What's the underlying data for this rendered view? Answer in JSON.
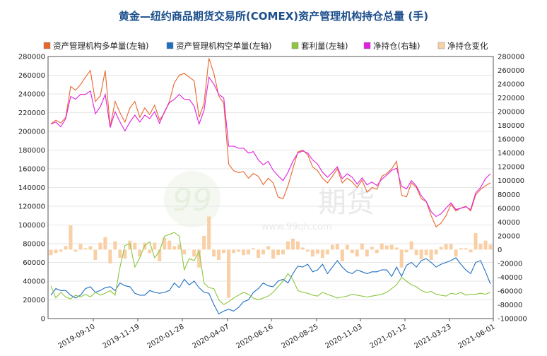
{
  "chart_data": {
    "type": "line",
    "title": "黄金—纽约商品期货交易所(COMEX)资产管理机构持仓总量  (手)",
    "watermark": {
      "brand": "期货",
      "url": "www.99qh.com",
      "logo": "99"
    },
    "legend": [
      {
        "name": "资产管理机构多单量(左轴)",
        "color": "#e8662c",
        "kind": "line"
      },
      {
        "name": "资产管理机构空单量(左轴)",
        "color": "#1f6fc0",
        "kind": "line"
      },
      {
        "name": "套利量(左轴)",
        "color": "#8cc63f",
        "kind": "line"
      },
      {
        "name": "净持仓(右轴)",
        "color": "#e020e0",
        "kind": "line"
      },
      {
        "name": "净持仓变化",
        "color": "#f9cfa6",
        "kind": "bar"
      }
    ],
    "left_axis": {
      "min": 0,
      "max": 280000,
      "step": 20000
    },
    "right_axis": {
      "min": -100000,
      "max": 280000,
      "step": 20000
    },
    "x_tick_labels": [
      "2019-09-10",
      "2019-11-19",
      "2020-01-28",
      "2020-04-07",
      "2020-06-16",
      "2020-08-25",
      "2020-11-03",
      "2021-01-12",
      "2021-03-23",
      "2021-06-01"
    ],
    "grid": "horizontal",
    "x_start": "2019-07-09",
    "series": [
      {
        "name": "资产管理机构多单量(左轴)",
        "axis": "left",
        "color": "#e8662c",
        "values": [
          208000,
          212000,
          209000,
          215000,
          248000,
          244000,
          250000,
          258000,
          265000,
          232000,
          238000,
          265000,
          205000,
          232000,
          220000,
          210000,
          225000,
          232000,
          215000,
          225000,
          218000,
          228000,
          212000,
          220000,
          232000,
          252000,
          260000,
          262000,
          258000,
          254000,
          215000,
          230000,
          278000,
          262000,
          238000,
          230000,
          165000,
          158000,
          156000,
          157000,
          150000,
          155000,
          152000,
          143000,
          150000,
          145000,
          130000,
          128000,
          142000,
          160000,
          178000,
          180000,
          175000,
          162000,
          158000,
          150000,
          145000,
          152000,
          160000,
          145000,
          150000,
          146000,
          140000,
          148000,
          135000,
          140000,
          138000,
          152000,
          155000,
          160000,
          168000,
          132000,
          130000,
          145000,
          140000,
          128000,
          125000,
          110000,
          98000,
          102000,
          110000,
          122000,
          115000,
          118000,
          120000,
          115000,
          132000,
          138000,
          142000,
          145000
        ]
      },
      {
        "name": "资产管理机构空单量(左轴)",
        "axis": "left",
        "color": "#1f6fc0",
        "values": [
          25000,
          32000,
          30000,
          30000,
          25000,
          22000,
          25000,
          32000,
          34000,
          28000,
          30000,
          33000,
          34000,
          30000,
          38000,
          35000,
          34000,
          27000,
          25000,
          25000,
          30000,
          28000,
          27000,
          28000,
          30000,
          38000,
          33000,
          42000,
          36000,
          40000,
          33000,
          28000,
          27000,
          15000,
          5000,
          8000,
          10000,
          8000,
          12000,
          18000,
          20000,
          28000,
          32000,
          38000,
          35000,
          34000,
          40000,
          42000,
          38000,
          48000,
          56000,
          55000,
          58000,
          50000,
          52000,
          58000,
          48000,
          55000,
          62000,
          55000,
          50000,
          48000,
          52000,
          50000,
          48000,
          50000,
          50000,
          52000,
          52000,
          45000,
          55000,
          45000,
          57000,
          60000,
          55000,
          62000,
          64000,
          60000,
          55000,
          58000,
          60000,
          62000,
          65000,
          58000,
          52000,
          48000,
          60000,
          62000,
          50000,
          37000
        ]
      },
      {
        "name": "套利量(左轴)",
        "axis": "left",
        "color": "#8cc63f",
        "values": [
          35000,
          22000,
          28000,
          23000,
          21000,
          25000,
          23000,
          26000,
          23000,
          28000,
          25000,
          27000,
          30000,
          25000,
          55000,
          78000,
          80000,
          55000,
          65000,
          78000,
          82000,
          65000,
          72000,
          88000,
          90000,
          92000,
          88000,
          52000,
          64000,
          62000,
          72000,
          38000,
          33000,
          32000,
          20000,
          15000,
          18000,
          22000,
          25000,
          28000,
          26000,
          22000,
          20000,
          22000,
          24000,
          28000,
          34000,
          40000,
          48000,
          42000,
          30000,
          28000,
          27000,
          25000,
          24000,
          28000,
          26000,
          24000,
          22000,
          23000,
          24000,
          26000,
          25000,
          24000,
          23000,
          24000,
          25000,
          26000,
          28000,
          32000,
          36000,
          44000,
          40000,
          36000,
          34000,
          30000,
          28000,
          29000,
          26000,
          25000,
          24000,
          27000,
          26000,
          28000,
          25000,
          26000,
          26000,
          27000,
          26000,
          28000
        ]
      },
      {
        "name": "净持仓(右轴)",
        "axis": "right",
        "color": "#e020e0",
        "values": [
          182000,
          185000,
          178000,
          190000,
          222000,
          218000,
          225000,
          225000,
          230000,
          197000,
          207000,
          225000,
          177000,
          200000,
          185000,
          172000,
          185000,
          195000,
          185000,
          195000,
          190000,
          200000,
          183000,
          200000,
          213000,
          218000,
          225000,
          218000,
          218000,
          208000,
          182000,
          202000,
          250000,
          240000,
          225000,
          220000,
          150000,
          150000,
          147000,
          147000,
          140000,
          142000,
          130000,
          123000,
          128000,
          115000,
          107000,
          100000,
          112000,
          128000,
          140000,
          143000,
          140000,
          130000,
          124000,
          112000,
          105000,
          112000,
          120000,
          103000,
          110000,
          105000,
          95000,
          104000,
          94000,
          98000,
          93000,
          102000,
          108000,
          115000,
          118000,
          92000,
          88000,
          100000,
          92000,
          78000,
          70000,
          55000,
          48000,
          52000,
          60000,
          68000,
          58000,
          60000,
          62000,
          58000,
          82000,
          90000,
          103000,
          110000
        ]
      },
      {
        "name": "净持仓变化",
        "axis": "right",
        "type": "bar",
        "color": "#f9cfa6",
        "values": [
          -8000,
          -5000,
          -3000,
          5000,
          35000,
          -3000,
          8000,
          2000,
          5000,
          -15000,
          10000,
          18000,
          -20000,
          12000,
          -12000,
          -13000,
          13000,
          10000,
          -10000,
          10000,
          -5000,
          10000,
          -17000,
          17000,
          13000,
          5000,
          7000,
          -7000,
          0,
          -10000,
          -26000,
          20000,
          48000,
          -10000,
          -15000,
          -5000,
          -70000,
          -5000,
          -3000,
          -8000,
          -7000,
          2000,
          -12000,
          -7000,
          5000,
          -13000,
          -8000,
          -7000,
          12000,
          16000,
          12000,
          3000,
          -3000,
          -10000,
          -6000,
          -12000,
          -7000,
          7000,
          8000,
          -17000,
          7000,
          -5000,
          -10000,
          9000,
          -10000,
          4000,
          -5000,
          9000,
          6000,
          7000,
          3000,
          -26000,
          -4000,
          12000,
          -8000,
          -14000,
          -8000,
          -15000,
          -7000,
          4000,
          8000,
          8000,
          -10000,
          2000,
          2000,
          -4000,
          24000,
          8000,
          13000,
          7000
        ]
      }
    ]
  }
}
